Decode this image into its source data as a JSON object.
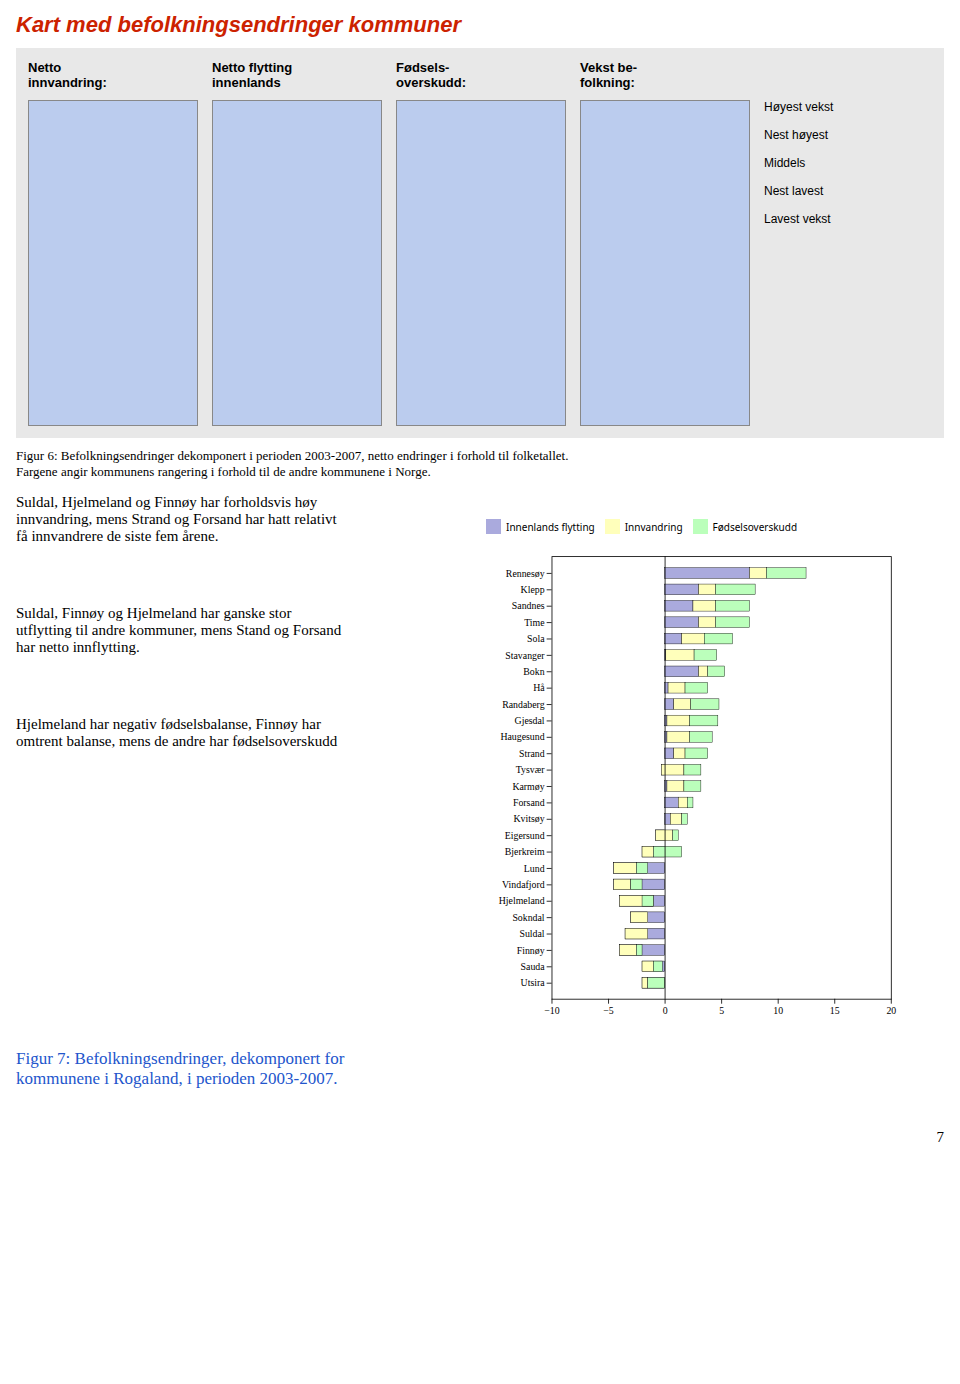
{
  "chart_data": {
    "type": "bar",
    "title": "Kart med befolkningsendringer kommuner",
    "orientation": "horizontal",
    "stacked": true,
    "categories": [
      "Rennesøy",
      "Klepp",
      "Sandnes",
      "Time",
      "Sola",
      "Stavanger",
      "Bokn",
      "Hå",
      "Randaberg",
      "Gjesdal",
      "Haugesund",
      "Strand",
      "Tysvær",
      "Karmøy",
      "Forsand",
      "Kvitsøy",
      "Eigersund",
      "Bjerkreim",
      "Lund",
      "Vindafjord",
      "Hjelmeland",
      "Sokndal",
      "Suldal",
      "Finnøy",
      "Sauda",
      "Utsira"
    ],
    "series": [
      {
        "name": "Innenlands flytting",
        "color": "#aaaadd",
        "values": [
          7.5,
          3.0,
          2.5,
          3.0,
          1.5,
          0.1,
          3.0,
          0.3,
          0.8,
          0.2,
          0.2,
          0.8,
          -0.3,
          0.2,
          1.2,
          0.5,
          -0.8,
          -2.0,
          -4.5,
          -4.5,
          -4.0,
          -3.0,
          -3.5,
          -4.0,
          -2.0,
          -2.0
        ]
      },
      {
        "name": "Innvandring",
        "color": "#ffffbb",
        "values": [
          1.5,
          1.5,
          2.0,
          1.5,
          2.0,
          2.5,
          0.8,
          1.5,
          1.5,
          2.0,
          2.0,
          1.0,
          2.0,
          1.5,
          0.8,
          1.0,
          1.5,
          1.0,
          2.0,
          1.5,
          3.0,
          1.5,
          2.0,
          1.5,
          1.0,
          0.5
        ]
      },
      {
        "name": "Fødselsoverskudd",
        "color": "#bbffbb",
        "values": [
          3.5,
          3.5,
          3.0,
          3.0,
          2.5,
          2.0,
          1.5,
          2.0,
          2.5,
          2.5,
          2.0,
          2.0,
          1.5,
          1.5,
          0.5,
          0.5,
          0.5,
          2.5,
          1.0,
          1.0,
          -1.0,
          0.0,
          0.0,
          0.5,
          0.8,
          1.5
        ]
      }
    ],
    "xlim": [
      -10,
      20
    ],
    "xticks": [
      -10,
      -5,
      0,
      5,
      10,
      15,
      20
    ],
    "grid": false,
    "legend": "top",
    "annotations": [
      "Figur 6: Befolkningsendringer dekomponert i perioden 2003-2007, netto endringer i forhold til folketallet.\nFargene angir kommunens rangering i forhold til de andre kommunene i Norge.",
      "Netto\ninnvandring:",
      "Netto flytting\ninnenlands",
      "Fødsels-\noverskudd:",
      "Vekst be-\nfolkning:",
      "Høyest vekst",
      "Nest høyest",
      "Middels",
      "Nest lavest",
      "Lavest vekst",
      "Suldal, Hjelmeland og Finnøy har forholdsvis høy\ninnvandring, mens Strand og Forsand har hatt relativt\nfå innvandrere de siste fem årene.",
      "Suldal, Finnøy og Hjelmeland har ganske stor\nutflytting til andre kommuner, mens Stand og Forsand\nhar netto innflytting.",
      "Hjelmeland har negativ fødselsbalanse, Finnøy har\nomtrent balanse, mens de andre har fødselsoverskudd",
      "Figur 7: Befolkningsendringer, dekomponert for\nkommunene i Rogaland, i perioden 2003-2007.",
      "7"
    ]
  }
}
